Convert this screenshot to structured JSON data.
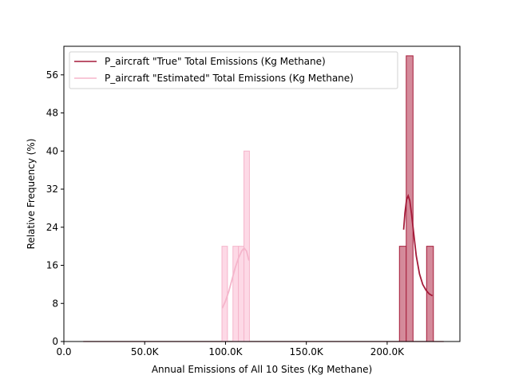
{
  "chart_data": {
    "type": "bar",
    "xlabel": "Annual Emissions of All 10 Sites (Kg Methane)",
    "ylabel": "Relative Frequency (%)",
    "xlim": [
      0,
      245000
    ],
    "ylim": [
      0,
      62
    ],
    "x_ticks": [
      {
        "value": 0,
        "label": "0.0"
      },
      {
        "value": 50000,
        "label": "50.0K"
      },
      {
        "value": 100000,
        "label": "100.0K"
      },
      {
        "value": 150000,
        "label": "150.0K"
      },
      {
        "value": 200000,
        "label": "200.0K"
      }
    ],
    "y_ticks": [
      {
        "value": 0,
        "label": "0"
      },
      {
        "value": 8,
        "label": "8"
      },
      {
        "value": 16,
        "label": "16"
      },
      {
        "value": 24,
        "label": "24"
      },
      {
        "value": 32,
        "label": "32"
      },
      {
        "value": 40,
        "label": "40"
      },
      {
        "value": 48,
        "label": "48"
      },
      {
        "value": 56,
        "label": "56"
      }
    ],
    "legend_position": "top-left",
    "grid": false,
    "series": [
      {
        "name": "P_aircraft \"True\" Total Emissions (Kg Methane)",
        "line_color": "#a51c3a",
        "fill_color": "#d48a9a",
        "bins": [
          {
            "x0": 207600,
            "x1": 211800,
            "value": 20
          },
          {
            "x0": 211800,
            "x1": 216000,
            "value": 60
          },
          {
            "x0": 216000,
            "x1": 220200,
            "value": 0
          },
          {
            "x0": 220200,
            "x1": 224400,
            "value": 0
          },
          {
            "x0": 224400,
            "x1": 228600,
            "value": 20
          }
        ],
        "kde": [
          [
            210200,
            23.5
          ],
          [
            211000,
            27
          ],
          [
            212000,
            29.8
          ],
          [
            213000,
            30.6
          ],
          [
            214000,
            29.6
          ],
          [
            215000,
            27
          ],
          [
            216500,
            22.5
          ],
          [
            218000,
            18
          ],
          [
            220000,
            14.2
          ],
          [
            222000,
            12
          ],
          [
            224000,
            10.8
          ],
          [
            226000,
            10
          ],
          [
            228000,
            9.6
          ]
        ]
      },
      {
        "name": "P_aircraft \"Estimated\" Total Emissions (Kg Methane)",
        "line_color": "#f5b5cb",
        "fill_color": "#fdd9e6",
        "bins": [
          {
            "x0": 97800,
            "x1": 101200,
            "value": 20
          },
          {
            "x0": 101200,
            "x1": 104600,
            "value": 0
          },
          {
            "x0": 104600,
            "x1": 108000,
            "value": 20
          },
          {
            "x0": 108000,
            "x1": 111400,
            "value": 20
          },
          {
            "x0": 111400,
            "x1": 114800,
            "value": 40
          }
        ],
        "kde": [
          [
            98000,
            7
          ],
          [
            100000,
            8.5
          ],
          [
            102000,
            10.5
          ],
          [
            104000,
            13
          ],
          [
            106000,
            15.5
          ],
          [
            108000,
            17.5
          ],
          [
            110000,
            19
          ],
          [
            111500,
            19.6
          ],
          [
            113000,
            19
          ],
          [
            114500,
            17
          ]
        ]
      }
    ],
    "baseline": {
      "x0": 12000,
      "x1": 235000
    }
  }
}
